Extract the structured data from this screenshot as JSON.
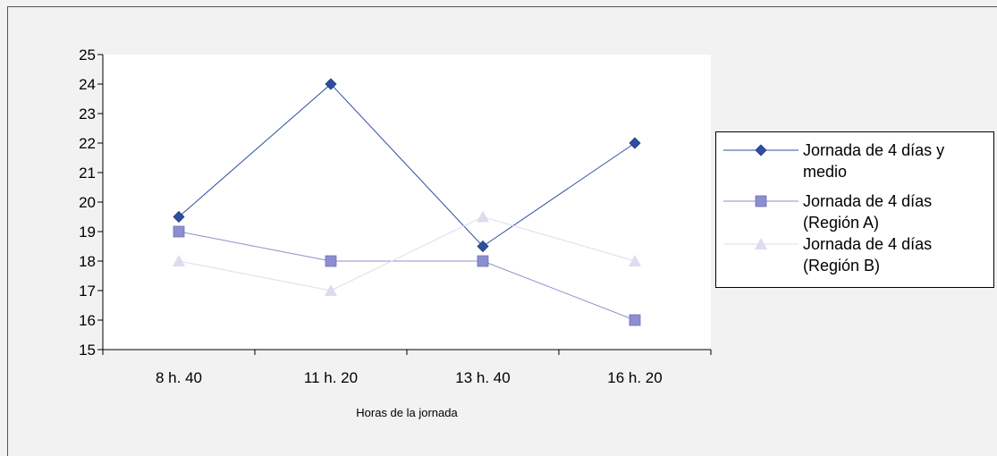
{
  "chart_data": {
    "type": "line",
    "categories": [
      "8 h. 40",
      "11 h. 20",
      "13 h. 40",
      "16 h. 20"
    ],
    "series": [
      {
        "name": "Jornada de 4 días y medio",
        "values": [
          19.5,
          24,
          18.5,
          22
        ],
        "color": "#2e4fa0",
        "marker": "diamond"
      },
      {
        "name": "Jornada de 4 días (Región A)",
        "values": [
          19,
          18,
          18,
          16
        ],
        "color": "#8c8fcf",
        "marker": "square"
      },
      {
        "name": "Jornada de 4 días (Región B)",
        "values": [
          18,
          17,
          19.5,
          18
        ],
        "color": "#dcdcef",
        "marker": "triangle"
      }
    ],
    "title": "",
    "xlabel": "Horas de la jornada",
    "ylabel": "",
    "ylim": [
      15,
      25
    ],
    "yticks": [
      "15",
      "16",
      "17",
      "18",
      "19",
      "20",
      "21",
      "22",
      "23",
      "24",
      "25"
    ],
    "legend_position": "right",
    "grid": false,
    "plot_background": "#ffffff",
    "page_background": "#f2f2f2"
  }
}
